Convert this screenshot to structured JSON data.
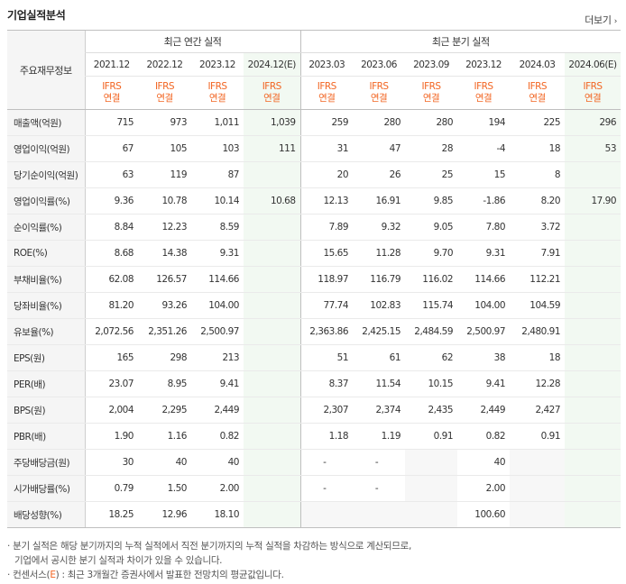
{
  "header": {
    "title": "기업실적분석",
    "more_label": "더보기",
    "more_icon": "chevron-right-icon"
  },
  "table": {
    "row_header_label": "주요재무정보",
    "group_annual": "최근 연간 실적",
    "group_quarter": "최근 분기 실적",
    "periods": [
      "2021.12",
      "2022.12",
      "2023.12",
      "2024.12(E)",
      "2023.03",
      "2023.06",
      "2023.09",
      "2023.12",
      "2024.03",
      "2024.06(E)"
    ],
    "ifrs_top": "IFRS",
    "ifrs_bottom": "연결",
    "rows": [
      {
        "label": "매출액(억원)",
        "values": [
          "715",
          "973",
          "1,011",
          "1,039",
          "259",
          "280",
          "280",
          "194",
          "225",
          "296"
        ]
      },
      {
        "label": "영업이익(억원)",
        "values": [
          "67",
          "105",
          "103",
          "111",
          "31",
          "47",
          "28",
          "-4",
          "18",
          "53"
        ]
      },
      {
        "label": "당기순이익(억원)",
        "values": [
          "63",
          "119",
          "87",
          "",
          "20",
          "26",
          "25",
          "15",
          "8",
          ""
        ]
      },
      {
        "label": "영업이익률(%)",
        "values": [
          "9.36",
          "10.78",
          "10.14",
          "10.68",
          "12.13",
          "16.91",
          "9.85",
          "-1.86",
          "8.20",
          "17.90"
        ]
      },
      {
        "label": "순이익률(%)",
        "values": [
          "8.84",
          "12.23",
          "8.59",
          "",
          "7.89",
          "9.32",
          "9.05",
          "7.80",
          "3.72",
          ""
        ]
      },
      {
        "label": "ROE(%)",
        "values": [
          "8.68",
          "14.38",
          "9.31",
          "",
          "15.65",
          "11.28",
          "9.70",
          "9.31",
          "7.91",
          ""
        ]
      },
      {
        "label": "부채비율(%)",
        "values": [
          "62.08",
          "126.57",
          "114.66",
          "",
          "118.97",
          "116.79",
          "116.02",
          "114.66",
          "112.21",
          ""
        ]
      },
      {
        "label": "당좌비율(%)",
        "values": [
          "81.20",
          "93.26",
          "104.00",
          "",
          "77.74",
          "102.83",
          "115.74",
          "104.00",
          "104.59",
          ""
        ]
      },
      {
        "label": "유보율(%)",
        "values": [
          "2,072.56",
          "2,351.26",
          "2,500.97",
          "",
          "2,363.86",
          "2,425.15",
          "2,484.59",
          "2,500.97",
          "2,480.91",
          ""
        ]
      },
      {
        "label": "EPS(원)",
        "values": [
          "165",
          "298",
          "213",
          "",
          "51",
          "61",
          "62",
          "38",
          "18",
          ""
        ]
      },
      {
        "label": "PER(배)",
        "values": [
          "23.07",
          "8.95",
          "9.41",
          "",
          "8.37",
          "11.54",
          "10.15",
          "9.41",
          "12.28",
          ""
        ]
      },
      {
        "label": "BPS(원)",
        "values": [
          "2,004",
          "2,295",
          "2,449",
          "",
          "2,307",
          "2,374",
          "2,435",
          "2,449",
          "2,427",
          ""
        ]
      },
      {
        "label": "PBR(배)",
        "values": [
          "1.90",
          "1.16",
          "0.82",
          "",
          "1.18",
          "1.19",
          "0.91",
          "0.82",
          "0.91",
          ""
        ]
      },
      {
        "label": "주당배당금(원)",
        "values": [
          "30",
          "40",
          "40",
          "",
          "-",
          "-",
          "",
          "40",
          "",
          ""
        ]
      },
      {
        "label": "시가배당률(%)",
        "values": [
          "0.79",
          "1.50",
          "2.00",
          "",
          "-",
          "-",
          "",
          "2.00",
          "",
          ""
        ]
      },
      {
        "label": "배당성향(%)",
        "values": [
          "18.25",
          "12.96",
          "18.10",
          "",
          "",
          "",
          "",
          "100.60",
          "",
          ""
        ]
      }
    ]
  },
  "notes": {
    "line1": "분기 실적은 해당 분기까지의 누적 실적에서 직전 분기까지의 누적 실적을 차감하는 방식으로 계산되므로,",
    "line2": "기업에서 공시한 분기 실적과 차이가 있을 수 있습니다.",
    "line3_prefix": "컨센서스(",
    "line3_e": "E",
    "line3_suffix": ") : 최근 3개월간 증권사에서 발표한 전망치의 평균값입니다."
  },
  "colors": {
    "accent": "#f26522",
    "negative": "#e02020",
    "estimate_bg": "#f2f9f2",
    "header_bg": "#f5f5f5"
  }
}
